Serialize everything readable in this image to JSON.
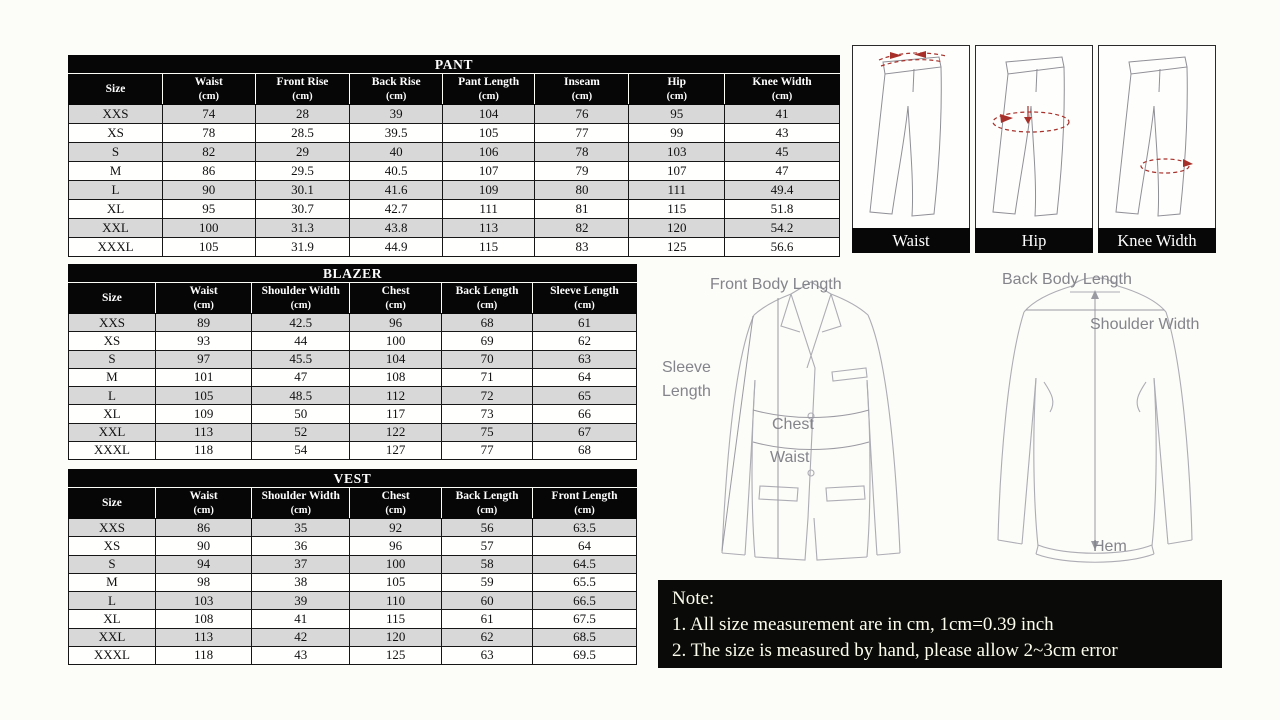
{
  "tables": [
    {
      "title": "PANT",
      "columns": [
        {
          "name": "Size",
          "unit": ""
        },
        {
          "name": "Waist",
          "unit": "(cm)"
        },
        {
          "name": "Front Rise",
          "unit": "(cm)"
        },
        {
          "name": "Back Rise",
          "unit": "(cm)"
        },
        {
          "name": "Pant Length",
          "unit": "(cm)"
        },
        {
          "name": "Inseam",
          "unit": "(cm)"
        },
        {
          "name": "Hip",
          "unit": "(cm)"
        },
        {
          "name": "Knee Width",
          "unit": "(cm)"
        }
      ],
      "rows": [
        [
          "XXS",
          "74",
          "28",
          "39",
          "104",
          "76",
          "95",
          "41"
        ],
        [
          "XS",
          "78",
          "28.5",
          "39.5",
          "105",
          "77",
          "99",
          "43"
        ],
        [
          "S",
          "82",
          "29",
          "40",
          "106",
          "78",
          "103",
          "45"
        ],
        [
          "M",
          "86",
          "29.5",
          "40.5",
          "107",
          "79",
          "107",
          "47"
        ],
        [
          "L",
          "90",
          "30.1",
          "41.6",
          "109",
          "80",
          "111",
          "49.4"
        ],
        [
          "XL",
          "95",
          "30.7",
          "42.7",
          "111",
          "81",
          "115",
          "51.8"
        ],
        [
          "XXL",
          "100",
          "31.3",
          "43.8",
          "113",
          "82",
          "120",
          "54.2"
        ],
        [
          "XXXL",
          "105",
          "31.9",
          "44.9",
          "115",
          "83",
          "125",
          "56.6"
        ]
      ]
    },
    {
      "title": "BLAZER",
      "columns": [
        {
          "name": "Size",
          "unit": ""
        },
        {
          "name": "Waist",
          "unit": "(cm)"
        },
        {
          "name": "Shoulder Width",
          "unit": "(cm)"
        },
        {
          "name": "Chest",
          "unit": "(cm)"
        },
        {
          "name": "Back Length",
          "unit": "(cm)"
        },
        {
          "name": "Sleeve Length",
          "unit": "(cm)"
        }
      ],
      "rows": [
        [
          "XXS",
          "89",
          "42.5",
          "96",
          "68",
          "61"
        ],
        [
          "XS",
          "93",
          "44",
          "100",
          "69",
          "62"
        ],
        [
          "S",
          "97",
          "45.5",
          "104",
          "70",
          "63"
        ],
        [
          "M",
          "101",
          "47",
          "108",
          "71",
          "64"
        ],
        [
          "L",
          "105",
          "48.5",
          "112",
          "72",
          "65"
        ],
        [
          "XL",
          "109",
          "50",
          "117",
          "73",
          "66"
        ],
        [
          "XXL",
          "113",
          "52",
          "122",
          "75",
          "67"
        ],
        [
          "XXXL",
          "118",
          "54",
          "127",
          "77",
          "68"
        ]
      ]
    },
    {
      "title": "VEST",
      "columns": [
        {
          "name": "Size",
          "unit": ""
        },
        {
          "name": "Waist",
          "unit": "(cm)"
        },
        {
          "name": "Shoulder Width",
          "unit": "(cm)"
        },
        {
          "name": "Chest",
          "unit": "(cm)"
        },
        {
          "name": "Back Length",
          "unit": "(cm)"
        },
        {
          "name": "Front Length",
          "unit": "(cm)"
        }
      ],
      "rows": [
        [
          "XXS",
          "86",
          "35",
          "92",
          "56",
          "63.5"
        ],
        [
          "XS",
          "90",
          "36",
          "96",
          "57",
          "64"
        ],
        [
          "S",
          "94",
          "37",
          "100",
          "58",
          "64.5"
        ],
        [
          "M",
          "98",
          "38",
          "105",
          "59",
          "65.5"
        ],
        [
          "L",
          "103",
          "39",
          "110",
          "60",
          "66.5"
        ],
        [
          "XL",
          "108",
          "41",
          "115",
          "61",
          "67.5"
        ],
        [
          "XXL",
          "113",
          "42",
          "120",
          "62",
          "68.5"
        ],
        [
          "XXXL",
          "118",
          "43",
          "125",
          "63",
          "69.5"
        ]
      ]
    }
  ],
  "pant_figures": [
    {
      "label": "Waist"
    },
    {
      "label": "Hip"
    },
    {
      "label": "Knee Width"
    }
  ],
  "front_jacket": {
    "front_body_length": "Front Body Length",
    "sleeve_line1": "Sleeve",
    "sleeve_line2": "Length",
    "chest": "Chest",
    "waist": "Waist"
  },
  "back_jacket": {
    "back_body_length": "Back Body Length",
    "shoulder_width": "Shoulder Width",
    "hem": "Hem"
  },
  "note": {
    "heading": "Note:",
    "line1": "1. All size measurement are in cm, 1cm=0.39 inch",
    "line2": "2. The size is measured by hand, please allow 2~3cm error"
  },
  "colors": {
    "header_bg": "#060606",
    "alt_row_bg": "#d8d8d8",
    "note_bg": "#0a0a08",
    "measure_red": "#a8302a",
    "sketch_gray": "#acacb4",
    "label_gray": "#84848c"
  }
}
